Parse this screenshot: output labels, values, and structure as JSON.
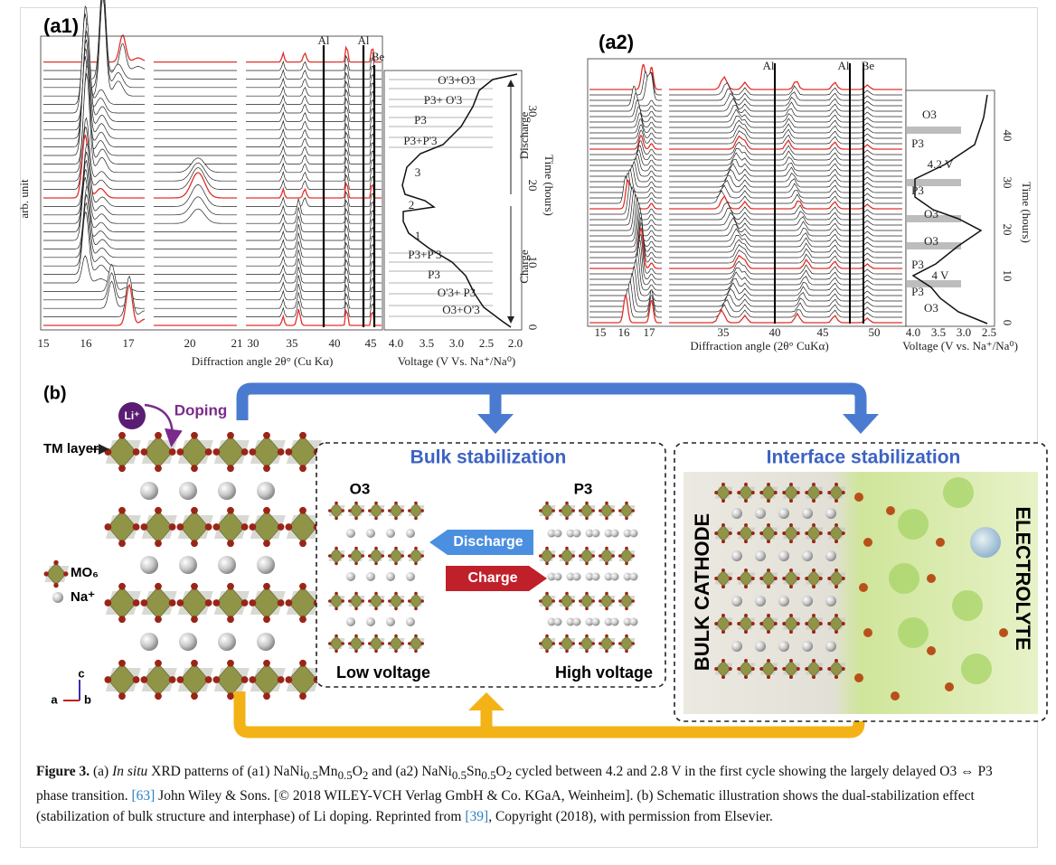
{
  "panel_a1": {
    "label": "(a1)",
    "y_label": "arb. unit",
    "peaks": [
      "Al",
      "Al",
      "Be"
    ],
    "x_ticks": [
      "15",
      "16",
      "17",
      "20",
      "21",
      "30",
      "35",
      "40",
      "45"
    ],
    "x_label": "Diffraction angle 2θ° (Cu Kα)",
    "phases": [
      "O'3+O3",
      "P3+ O'3",
      "P3",
      "P3+P'3",
      "3",
      "2",
      "1",
      "P3+P'3",
      "P3",
      "O'3+ P3",
      "O3+O'3"
    ],
    "arrows": [
      "Discharge",
      "Charge"
    ],
    "voltage_ticks": [
      "4.0",
      "3.5",
      "3.0",
      "2.5",
      "2.0"
    ],
    "voltage_label": "Voltage (V Vs. Na⁺/Na⁰)",
    "time_ticks": [
      "0",
      "10",
      "20",
      "30"
    ],
    "time_label": "Time (hours)"
  },
  "panel_a2": {
    "label": "(a2)",
    "peaks": [
      "Al",
      "Al",
      "Be"
    ],
    "x_ticks": [
      "15",
      "16",
      "17",
      "35",
      "40",
      "45",
      "50"
    ],
    "x_label": "Diffraction angle (2θ° CuKα)",
    "phases": [
      "O3",
      "P3",
      "4.2 V",
      "P3",
      "O3",
      "O3",
      "P3",
      "4 V",
      "P3",
      "O3"
    ],
    "voltage_ticks": [
      "4.0",
      "3.5",
      "3.0",
      "2.5"
    ],
    "voltage_label": "Voltage (V vs. Na⁺/Na⁰)",
    "time_ticks": [
      "0",
      "10",
      "20",
      "30",
      "40"
    ],
    "time_label": "Time (hours)"
  },
  "panel_b": {
    "label": "(b)",
    "li": "Li⁺",
    "doping": "Doping",
    "tm_layer": "TM layer",
    "mo6": "MO₆",
    "na": "Na⁺",
    "axes": [
      "c",
      "a",
      "b"
    ],
    "bulk": {
      "title": "Bulk stabilization",
      "left": "O3",
      "right": "P3",
      "discharge": "Discharge",
      "charge": "Charge",
      "low": "Low voltage",
      "high": "High voltage"
    },
    "interface": {
      "title": "Interface stabilization",
      "cathode": "BULK CATHODE",
      "electrolyte": "ELECTROLYTE"
    }
  },
  "caption": [
    "Figure 3.",
    " (a) ",
    "In situ",
    " XRD patterns of (a1) NaNi",
    "0.5",
    "Mn",
    "0.5",
    "O",
    "2",
    " and (a2) NaNi",
    "0.5",
    "Sn",
    "0.5",
    "O",
    "2",
    " cycled between 4.2 and 2.8 V in the first cycle showing the largely delayed O3 ⇔ P3 phase transition. ",
    "[63]",
    " John Wiley & Sons. [© 2018 WILEY-VCH Verlag GmbH & Co. KGaA, Weinheim]. (b) Schematic illustration shows the dual-stabilization effect (stabilization of bulk structure and interphase) of Li doping. Reprinted from ",
    "[39]",
    ", Copyright (2018), with permission from Elsevier."
  ]
}
